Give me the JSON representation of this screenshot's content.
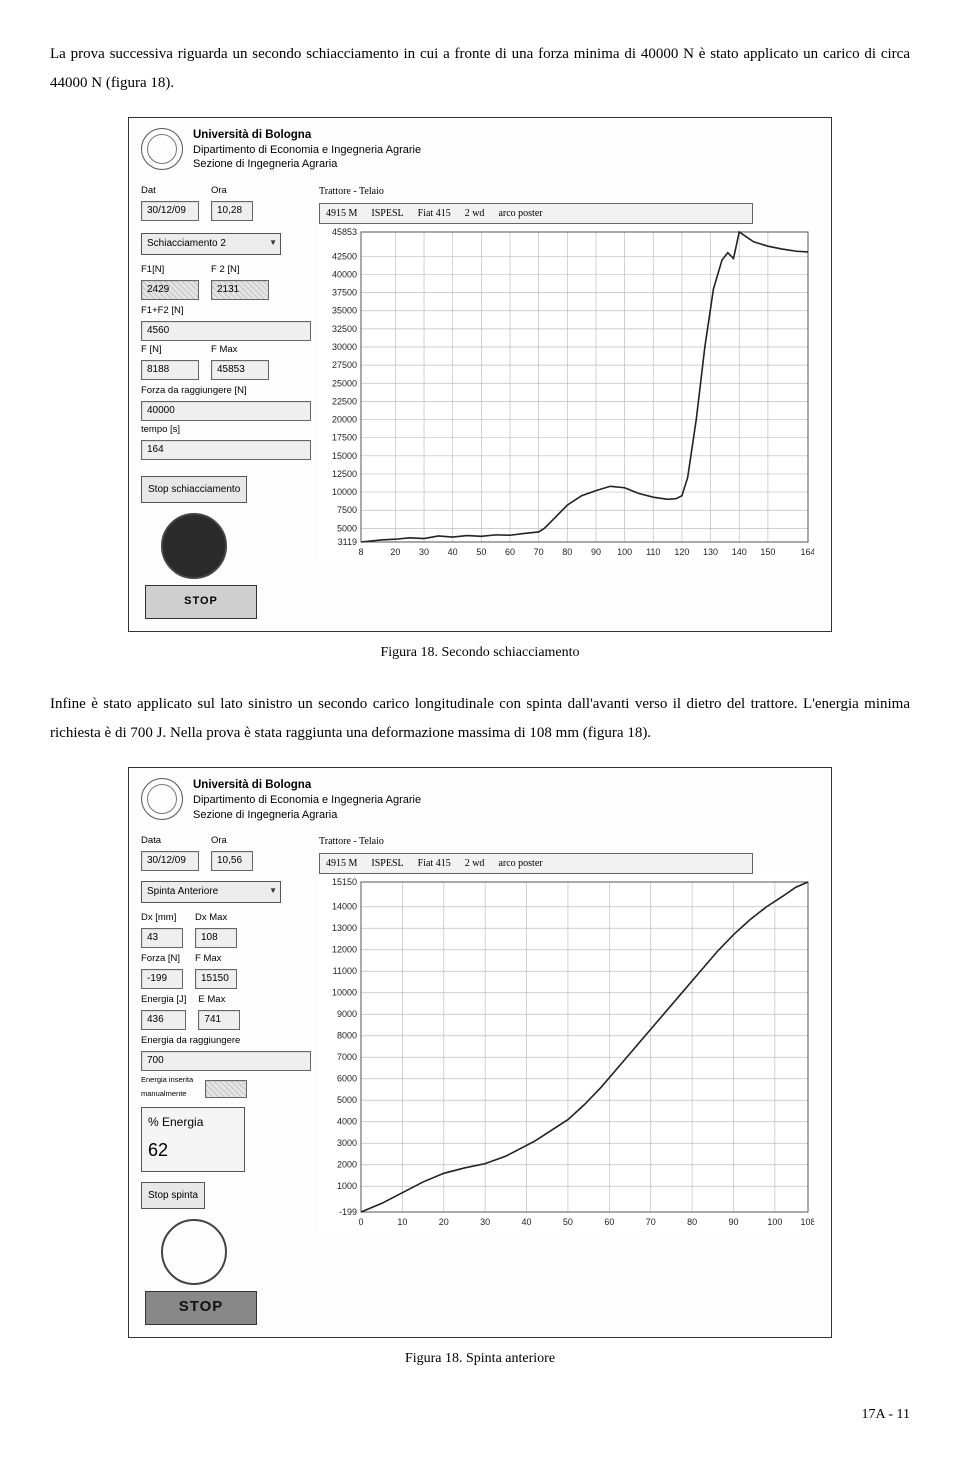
{
  "para1": "La prova successiva riguarda un secondo schiacciamento in cui a fronte di una forza minima di 40000 N è stato applicato un carico di circa 44000 N (figura 18).",
  "para2": "Infine è stato applicato sul lato sinistro un secondo carico longitudinale con spinta dall'avanti verso il dietro del trattore. L'energia minima richiesta è di 700 J. Nella prova è stata raggiunta una deformazione massima di 108 mm (figura 18).",
  "caption1": "Figura 18. Secondo schiacciamento",
  "caption2": "Figura 18. Spinta anteriore",
  "pageNum": "17A - 11",
  "uni": {
    "name": "Università di Bologna",
    "dept": "Dipartimento di Economia e Ingegneria Agrarie",
    "sect": "Sezione di Ingegneria Agraria"
  },
  "fig1": {
    "dat_label": "Dat",
    "dat": "30/12/09",
    "ora_label": "Ora",
    "ora": "10,28",
    "trattore_label": "Trattore - Telaio",
    "trattore": [
      "4915  M",
      "ISPESL",
      "Fiat 415",
      "2 wd",
      "arco poster"
    ],
    "dropdown": "Schiacciamento 2",
    "f1_label": "F1[N]",
    "f1": "2429",
    "f2_label": "F 2 [N]",
    "f2": "2131",
    "f12_label": "F1+F2 [N]",
    "f12": "4560",
    "fn_label": "F [N]",
    "fn": "8188",
    "fmax_label": "F Max",
    "fmax": "45853",
    "fragg_label": "Forza da raggiungere [N]",
    "fragg": "40000",
    "tempo_label": "tempo [s]",
    "tempo": "164",
    "stop_btn": "Stop schiacciamento",
    "stop_big": "STOP",
    "chart": {
      "yticks": [
        45853,
        42500,
        40000,
        37500,
        35000,
        32500,
        30000,
        27500,
        25000,
        22500,
        20000,
        17500,
        15000,
        12500,
        10000,
        7500,
        5000,
        3119
      ],
      "xticks": [
        8,
        20,
        30,
        40,
        50,
        60,
        70,
        80,
        90,
        100,
        110,
        120,
        130,
        140,
        150,
        164
      ],
      "ylim": [
        3119,
        45853
      ],
      "xlim": [
        8,
        164
      ],
      "grid_color": "#bfbfbf",
      "line_color": "#222222",
      "points": [
        [
          8,
          3119
        ],
        [
          15,
          3400
        ],
        [
          20,
          3500
        ],
        [
          25,
          3700
        ],
        [
          30,
          3600
        ],
        [
          35,
          3950
        ],
        [
          40,
          3800
        ],
        [
          45,
          4000
        ],
        [
          50,
          3900
        ],
        [
          55,
          4100
        ],
        [
          60,
          4050
        ],
        [
          65,
          4300
        ],
        [
          70,
          4500
        ],
        [
          72,
          5000
        ],
        [
          75,
          6200
        ],
        [
          80,
          8200
        ],
        [
          85,
          9500
        ],
        [
          90,
          10200
        ],
        [
          95,
          10800
        ],
        [
          100,
          10600
        ],
        [
          105,
          9800
        ],
        [
          110,
          9300
        ],
        [
          115,
          9000
        ],
        [
          118,
          9100
        ],
        [
          120,
          9500
        ],
        [
          122,
          12000
        ],
        [
          125,
          20000
        ],
        [
          128,
          30000
        ],
        [
          131,
          38000
        ],
        [
          134,
          42000
        ],
        [
          136,
          43000
        ],
        [
          138,
          42200
        ],
        [
          140,
          45853
        ],
        [
          145,
          44500
        ],
        [
          150,
          43900
        ],
        [
          155,
          43500
        ],
        [
          160,
          43200
        ],
        [
          164,
          43100
        ]
      ]
    }
  },
  "fig2": {
    "data_label": "Data",
    "data": "30/12/09",
    "ora_label": "Ora",
    "ora": "10,56",
    "trattore_label": "Trattore - Telaio",
    "trattore": [
      "4915  M",
      "ISPESL",
      "Fiat 415",
      "2 wd",
      "arco poster"
    ],
    "dropdown": "Spinta Anteriore",
    "dx_label": "Dx [mm]",
    "dx": "43",
    "dxmax_label": "Dx Max",
    "dxmax": "108",
    "forza_label": "Forza [N]",
    "forza": "-199",
    "fmax_label": "F Max",
    "fmax": "15150",
    "energia_label": "Energia [J]",
    "energia": "436",
    "emax_label": "E Max",
    "emax": "741",
    "eragg_label": "Energia da raggiungere",
    "eragg": "700",
    "einsmono": " ",
    "pct_label": "% Energia",
    "pct": "62",
    "stop_btn": "Stop spinta",
    "stop_big": "STOP",
    "chart": {
      "yticks": [
        15150,
        14000,
        13000,
        12000,
        11000,
        10000,
        9000,
        8000,
        7000,
        6000,
        5000,
        4000,
        3000,
        2000,
        1000,
        -199
      ],
      "xticks": [
        0,
        10,
        20,
        30,
        40,
        50,
        60,
        70,
        80,
        90,
        100,
        108
      ],
      "ylim": [
        -199,
        15150
      ],
      "xlim": [
        0,
        108
      ],
      "grid_color": "#bfbfbf",
      "line_color": "#222222",
      "points": [
        [
          0,
          -199
        ],
        [
          5,
          200
        ],
        [
          10,
          700
        ],
        [
          15,
          1200
        ],
        [
          20,
          1600
        ],
        [
          25,
          1850
        ],
        [
          30,
          2050
        ],
        [
          35,
          2400
        ],
        [
          38,
          2700
        ],
        [
          42,
          3100
        ],
        [
          46,
          3600
        ],
        [
          50,
          4100
        ],
        [
          54,
          4800
        ],
        [
          58,
          5600
        ],
        [
          62,
          6500
        ],
        [
          66,
          7400
        ],
        [
          70,
          8300
        ],
        [
          74,
          9200
        ],
        [
          78,
          10100
        ],
        [
          82,
          11000
        ],
        [
          86,
          11900
        ],
        [
          90,
          12700
        ],
        [
          94,
          13400
        ],
        [
          98,
          14000
        ],
        [
          102,
          14500
        ],
        [
          105,
          14900
        ],
        [
          108,
          15150
        ]
      ]
    }
  }
}
